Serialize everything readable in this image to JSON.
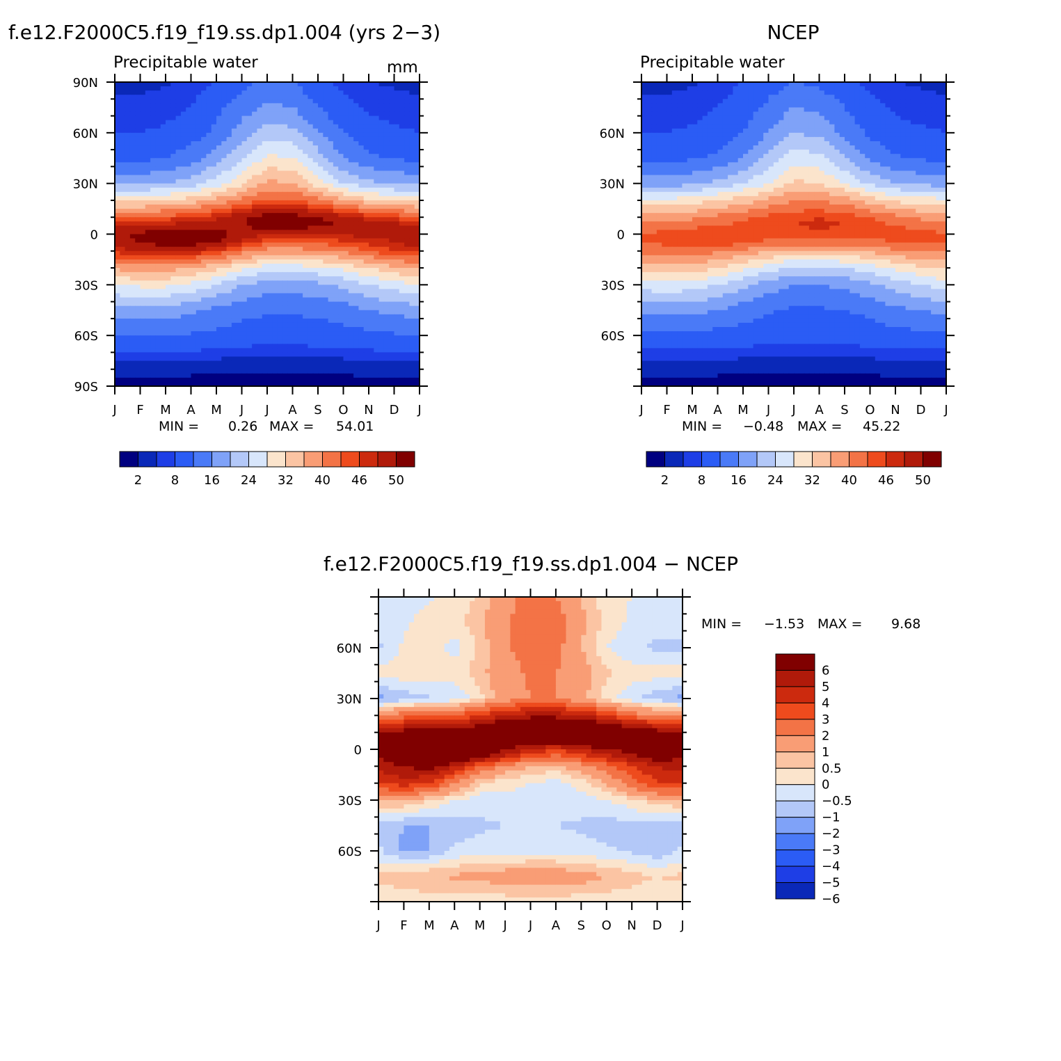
{
  "chart_data": [
    {
      "type": "heatmap",
      "title": "f.e12.F2000C5.f19_f19.ss.dp1.004 (yrs 2−3)",
      "subtitle": "Precipitable water",
      "units": "mm",
      "x_ticks": [
        "J",
        "F",
        "M",
        "A",
        "M",
        "J",
        "J",
        "A",
        "S",
        "O",
        "N",
        "D",
        "J"
      ],
      "y_ticks": [
        "90N",
        "60N",
        "30N",
        "0",
        "30S",
        "60S",
        "90S"
      ],
      "ylim": [
        -90,
        90
      ],
      "min_label": "MIN =",
      "min_value": "0.26",
      "max_label": "MAX =",
      "max_value": "54.01",
      "colorbar_labels": [
        "2",
        "8",
        "16",
        "24",
        "32",
        "40",
        "46",
        "50"
      ],
      "colorbar_colors": [
        "#000080",
        "#0a28b8",
        "#1e3ee6",
        "#2b5cf5",
        "#4a7af7",
        "#7fa2f8",
        "#b3c8f8",
        "#d8e6fb",
        "#fbe4cc",
        "#fbc4a3",
        "#f99d75",
        "#f37346",
        "#ee4b1d",
        "#cc2a0e",
        "#b01a0a",
        "#800000"
      ],
      "field": {
        "lat": [
          90,
          75,
          60,
          45,
          30,
          20,
          10,
          5,
          0,
          -5,
          -10,
          -20,
          -30,
          -45,
          -60,
          -75,
          -90
        ],
        "month": [
          0,
          1,
          2,
          3,
          4,
          5,
          6,
          7,
          8,
          9,
          10,
          11,
          12
        ],
        "values": [
          [
            1.5,
            1.5,
            1.8,
            2.5,
            4,
            7,
            9,
            8,
            5,
            3,
            2,
            1.7,
            1.5
          ],
          [
            2.5,
            2.5,
            3,
            4,
            7,
            10,
            13,
            12,
            8,
            5,
            3.5,
            2.8,
            2.5
          ],
          [
            4,
            4,
            4.5,
            6,
            9,
            14,
            18,
            17,
            12,
            8,
            5.5,
            4.5,
            4
          ],
          [
            7,
            7,
            8,
            10,
            14,
            19,
            25,
            24,
            18,
            12,
            9,
            7.5,
            7
          ],
          [
            15,
            15,
            16,
            18,
            22,
            27,
            33,
            32,
            26,
            20,
            17,
            15.5,
            15
          ],
          [
            27,
            27,
            28,
            30,
            33,
            37,
            41,
            41,
            37,
            33,
            29,
            27.5,
            27
          ],
          [
            40,
            40,
            41,
            43,
            45,
            49,
            52,
            52,
            50,
            47,
            44,
            42,
            40
          ],
          [
            46,
            46,
            47,
            48,
            49,
            50,
            52,
            52,
            51,
            50,
            49,
            48,
            46
          ],
          [
            49,
            51,
            53,
            53,
            52,
            48,
            46,
            45,
            46,
            47,
            47,
            48,
            49
          ],
          [
            48,
            50,
            52,
            52,
            50,
            45,
            41,
            40,
            41,
            42,
            44,
            46,
            48
          ],
          [
            44,
            46,
            47,
            46,
            43,
            38,
            34,
            34,
            35,
            37,
            40,
            43,
            44
          ],
          [
            33,
            34,
            34,
            32,
            29,
            25,
            22,
            22,
            23,
            25,
            28,
            31,
            33
          ],
          [
            24,
            25,
            25,
            23,
            20,
            16,
            14,
            14,
            15,
            17,
            20,
            22,
            24
          ],
          [
            14,
            14,
            14,
            13,
            11,
            9.5,
            8.5,
            8.5,
            9,
            10,
            12,
            13,
            14
          ],
          [
            8,
            8,
            8,
            7.5,
            7,
            6,
            5.5,
            5.5,
            6,
            6.5,
            7,
            7.5,
            8
          ],
          [
            1.8,
            1.8,
            1.8,
            1.7,
            1.6,
            1.5,
            1.4,
            1.4,
            1.5,
            1.6,
            1.8,
            1.8,
            1.8
          ],
          [
            0.5,
            0.5,
            0.5,
            0.5,
            0.5,
            0.5,
            0.5,
            0.5,
            0.5,
            0.5,
            0.5,
            0.5,
            0.5
          ]
        ]
      }
    },
    {
      "type": "heatmap",
      "title": "NCEP",
      "subtitle": "Precipitable water",
      "x_ticks": [
        "J",
        "F",
        "M",
        "A",
        "M",
        "J",
        "J",
        "A",
        "S",
        "O",
        "N",
        "D",
        "J"
      ],
      "y_ticks": [
        "60N",
        "30N",
        "0",
        "30S",
        "60S"
      ],
      "ylim": [
        -90,
        90
      ],
      "min_label": "MIN =",
      "min_value": "−0.48",
      "max_label": "MAX =",
      "max_value": "45.22",
      "colorbar_labels": [
        "2",
        "8",
        "16",
        "24",
        "32",
        "40",
        "46",
        "50"
      ],
      "colorbar_colors": [
        "#000080",
        "#0a28b8",
        "#1e3ee6",
        "#2b5cf5",
        "#4a7af7",
        "#7fa2f8",
        "#b3c8f8",
        "#d8e6fb",
        "#fbe4cc",
        "#fbc4a3",
        "#f99d75",
        "#f37346",
        "#ee4b1d",
        "#cc2a0e",
        "#b01a0a",
        "#800000"
      ],
      "field": {
        "lat": [
          90,
          75,
          60,
          45,
          30,
          20,
          10,
          5,
          0,
          -5,
          -10,
          -20,
          -30,
          -45,
          -60,
          -75,
          -90
        ],
        "month": [
          0,
          1,
          2,
          3,
          4,
          5,
          6,
          7,
          8,
          9,
          10,
          11,
          12
        ],
        "values": [
          [
            1.5,
            1.5,
            1.8,
            2.5,
            4,
            6,
            8,
            7,
            5,
            3,
            2,
            1.7,
            1.5
          ],
          [
            2.5,
            2.5,
            3,
            4,
            6,
            9,
            12,
            11,
            8,
            5,
            3.5,
            2.8,
            2.5
          ],
          [
            4,
            4,
            4.5,
            5.5,
            8,
            12,
            16,
            15,
            11,
            7,
            5,
            4.5,
            4
          ],
          [
            7,
            7,
            7.5,
            9,
            12,
            17,
            22,
            21,
            16,
            11,
            8.5,
            7.5,
            7
          ],
          [
            14,
            14,
            15,
            17,
            20,
            24,
            29,
            28,
            24,
            19,
            16,
            15,
            14
          ],
          [
            25,
            25,
            26,
            28,
            30,
            33,
            36,
            36,
            34,
            30,
            27,
            26,
            25
          ],
          [
            34,
            34,
            35,
            37,
            39,
            41,
            42,
            43,
            42,
            40,
            37,
            35,
            34
          ],
          [
            38,
            38,
            39,
            40,
            41,
            42,
            43,
            44,
            43,
            41,
            40,
            39,
            38
          ],
          [
            40,
            41,
            42,
            43,
            43,
            42,
            41,
            41,
            41,
            41,
            41,
            41,
            40
          ],
          [
            40,
            41,
            42,
            42,
            41,
            39,
            38,
            38,
            38,
            39,
            40,
            40,
            40
          ],
          [
            37,
            38,
            38,
            37,
            35,
            32,
            30,
            30,
            31,
            33,
            35,
            37,
            37
          ],
          [
            29,
            30,
            30,
            28,
            25,
            22,
            19,
            19,
            20,
            22,
            25,
            27,
            29
          ],
          [
            22,
            23,
            22,
            20,
            17,
            14,
            12,
            12,
            13,
            15,
            18,
            20,
            22
          ],
          [
            13,
            13,
            13,
            12,
            10,
            8.5,
            7.5,
            7.5,
            8,
            9,
            11,
            12,
            13
          ],
          [
            7,
            7,
            7,
            6.5,
            6,
            5.5,
            5,
            5,
            5.5,
            6,
            6.5,
            7,
            7
          ],
          [
            1.8,
            1.8,
            1.8,
            1.7,
            1.6,
            1.5,
            1.4,
            1.4,
            1.5,
            1.6,
            1.8,
            1.8,
            1.8
          ],
          [
            0.5,
            0.5,
            0.5,
            0.5,
            0.5,
            0.5,
            0.5,
            0.5,
            0.5,
            0.5,
            0.5,
            0.5,
            0.5
          ]
        ]
      }
    },
    {
      "type": "heatmap",
      "title": "f.e12.F2000C5.f19_f19.ss.dp1.004 − NCEP",
      "x_ticks": [
        "J",
        "F",
        "M",
        "A",
        "M",
        "J",
        "J",
        "A",
        "S",
        "O",
        "N",
        "D",
        "J"
      ],
      "y_ticks": [
        "60N",
        "30N",
        "0",
        "30S",
        "60S"
      ],
      "ylim": [
        -90,
        90
      ],
      "min_label": "MIN =",
      "min_value": "−1.53",
      "max_label": "MAX =",
      "max_value": "9.68",
      "colorbar_labels": [
        "6",
        "5",
        "4",
        "3",
        "2",
        "1",
        "0.5",
        "0",
        "−0.5",
        "−1",
        "−2",
        "−3",
        "−4",
        "−5",
        "−6"
      ],
      "colorbar_levels": [
        -6,
        -5,
        -4,
        -3,
        -2,
        -1,
        -0.5,
        0,
        0.5,
        1,
        2,
        3,
        4,
        5,
        6
      ],
      "colorbar_colors": [
        "#000080",
        "#0a28b8",
        "#1e3ee6",
        "#2b5cf5",
        "#4a7af7",
        "#7fa2f8",
        "#b3c8f8",
        "#d8e6fb",
        "#fbe4cc",
        "#fbc4a3",
        "#f99d75",
        "#f37346",
        "#ee4b1d",
        "#cc2a0e",
        "#b01a0a",
        "#800000"
      ],
      "field": {
        "lat": [
          90,
          75,
          60,
          45,
          30,
          20,
          10,
          5,
          0,
          -5,
          -10,
          -20,
          -30,
          -45,
          -60,
          -75,
          -90
        ],
        "month": [
          0,
          1,
          2,
          3,
          4,
          5,
          6,
          7,
          8,
          9,
          10,
          11,
          12
        ],
        "values": [
          [
            -0.2,
            -0.2,
            -0.1,
            0.2,
            0.6,
            1.5,
            2.5,
            2,
            1,
            0.2,
            0,
            -0.2,
            -0.2
          ],
          [
            -0.3,
            -0.1,
            0.2,
            0.3,
            0.8,
            1.8,
            2.8,
            2.5,
            1.2,
            0.3,
            -0.1,
            -0.3,
            -0.3
          ],
          [
            -0.6,
            0.1,
            0.3,
            -0.2,
            0.6,
            1.8,
            2.6,
            2.4,
            1,
            0,
            -0.4,
            -0.6,
            -0.6
          ],
          [
            0.2,
            0.3,
            0.4,
            0.2,
            0.8,
            1.5,
            2.2,
            2,
            1.4,
            0.6,
            0.3,
            0.2,
            0.2
          ],
          [
            -1.2,
            -0.8,
            -0.6,
            -0.4,
            0.3,
            1.5,
            2,
            2,
            1.2,
            0.2,
            -0.4,
            -0.8,
            -1.2
          ],
          [
            1.8,
            2.5,
            2.5,
            3,
            4,
            5,
            5.5,
            5.5,
            5,
            4,
            2.5,
            2,
            1.8
          ],
          [
            6,
            6.5,
            7,
            7,
            7.5,
            9,
            9.5,
            9.5,
            9,
            8.5,
            7.5,
            6.5,
            6
          ],
          [
            7,
            7.5,
            8,
            8,
            7.5,
            7,
            7,
            7,
            7.5,
            8,
            8,
            7.5,
            7
          ],
          [
            7,
            8.5,
            9.5,
            9.5,
            8,
            6,
            5,
            4,
            5,
            6,
            6.5,
            7,
            7
          ],
          [
            6,
            7,
            8,
            8,
            6,
            4.5,
            3,
            2.5,
            3.5,
            4.5,
            5.5,
            6.5,
            6
          ],
          [
            5.5,
            6,
            6.5,
            5,
            3,
            1.5,
            1,
            0.8,
            1.5,
            2.5,
            4,
            5,
            5.5
          ],
          [
            4,
            4.5,
            4,
            2,
            0.5,
            0.2,
            0,
            -0.2,
            0.2,
            1,
            2.5,
            4,
            4
          ],
          [
            1,
            1,
            0.5,
            0,
            -0.3,
            -0.2,
            -0.3,
            -0.3,
            -0.2,
            0,
            0.3,
            0.8,
            1
          ],
          [
            -0.8,
            -1,
            -1,
            -0.8,
            -0.6,
            -0.5,
            -0.4,
            -0.5,
            -0.6,
            -0.8,
            -0.6,
            -0.7,
            -0.8
          ],
          [
            -0.4,
            -1.1,
            -1,
            -0.4,
            -0.3,
            -0.2,
            -0.2,
            -0.2,
            -0.3,
            -0.4,
            -0.6,
            -0.9,
            -0.4
          ],
          [
            0.6,
            0.8,
            1,
            1.1,
            1.2,
            1.4,
            1.5,
            1.5,
            1.3,
            1,
            0.7,
            0.5,
            0.6
          ],
          [
            0.2,
            0.2,
            0.2,
            0.2,
            0.2,
            0.2,
            0.2,
            0.2,
            0.2,
            0.2,
            0.2,
            0.2,
            0.2
          ]
        ]
      }
    }
  ]
}
